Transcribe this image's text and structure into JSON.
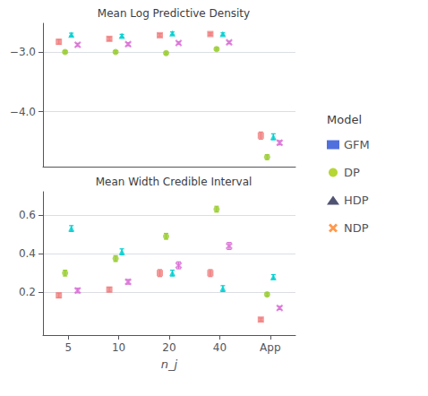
{
  "chart_data": [
    {
      "type": "scatter",
      "title": "Mean Log Predictive Density",
      "categories": [
        "5",
        "10",
        "20",
        "40",
        "App"
      ],
      "series": [
        {
          "name": "GFM",
          "color": "#F08080",
          "marker": "square",
          "values": [
            -2.83,
            -2.78,
            -2.72,
            -2.7,
            -4.4
          ],
          "yerr": [
            0.04,
            0.03,
            0.025,
            0.02,
            0.06
          ]
        },
        {
          "name": "DP",
          "color": "#9ACD32",
          "marker": "circle",
          "values": [
            -3.0,
            -3.0,
            -3.02,
            -2.95,
            -4.76
          ],
          "yerr": [
            0.02,
            0.02,
            0.02,
            0.02,
            0.04
          ]
        },
        {
          "name": "HDP",
          "color": "#00CED1",
          "marker": "triangle",
          "values": [
            -2.71,
            -2.73,
            -2.69,
            -2.7,
            -4.42
          ],
          "yerr": [
            0.025,
            0.025,
            0.025,
            0.02,
            0.05
          ]
        },
        {
          "name": "NDP",
          "color": "#DA70D6",
          "marker": "x",
          "values": [
            -2.88,
            -2.87,
            -2.85,
            -2.84,
            -4.52
          ],
          "yerr": [
            0.025,
            0.025,
            0.02,
            0.02,
            0.035
          ]
        }
      ],
      "ylim": [
        -4.92,
        -2.52
      ],
      "yticks": [
        {
          "value": -4,
          "label": "−4.0"
        },
        {
          "value": -3,
          "label": "−3.0"
        }
      ],
      "grid": true,
      "tick_labels": "y",
      "legend": "right",
      "legend_title": "Model"
    },
    {
      "type": "scatter",
      "title": "Mean Width Credible Interval",
      "xlabel": "n_j",
      "categories": [
        "5",
        "10",
        "20",
        "40",
        "App"
      ],
      "series": [
        {
          "name": "GFM",
          "color": "#F08080",
          "marker": "square",
          "values": [
            0.185,
            0.215,
            0.3,
            0.3,
            0.06
          ],
          "yerr": [
            0.012,
            0.012,
            0.018,
            0.018,
            0.008
          ]
        },
        {
          "name": "DP",
          "color": "#9ACD32",
          "marker": "circle",
          "values": [
            0.3,
            0.375,
            0.49,
            0.63,
            0.19
          ],
          "yerr": [
            0.015,
            0.015,
            0.015,
            0.015,
            0.008
          ]
        },
        {
          "name": "HDP",
          "color": "#00CED1",
          "marker": "triangle",
          "values": [
            0.53,
            0.41,
            0.3,
            0.22,
            0.28
          ],
          "yerr": [
            0.015,
            0.015,
            0.015,
            0.015,
            0.012
          ]
        },
        {
          "name": "NDP",
          "color": "#DA70D6",
          "marker": "x",
          "values": [
            0.21,
            0.255,
            0.34,
            0.44,
            0.12
          ],
          "yerr": [
            0.012,
            0.012,
            0.018,
            0.018,
            0.008
          ]
        }
      ],
      "ylim": [
        -0.02,
        0.72
      ],
      "yticks": [
        0.2,
        0.4,
        0.6
      ],
      "grid": true
    }
  ]
}
